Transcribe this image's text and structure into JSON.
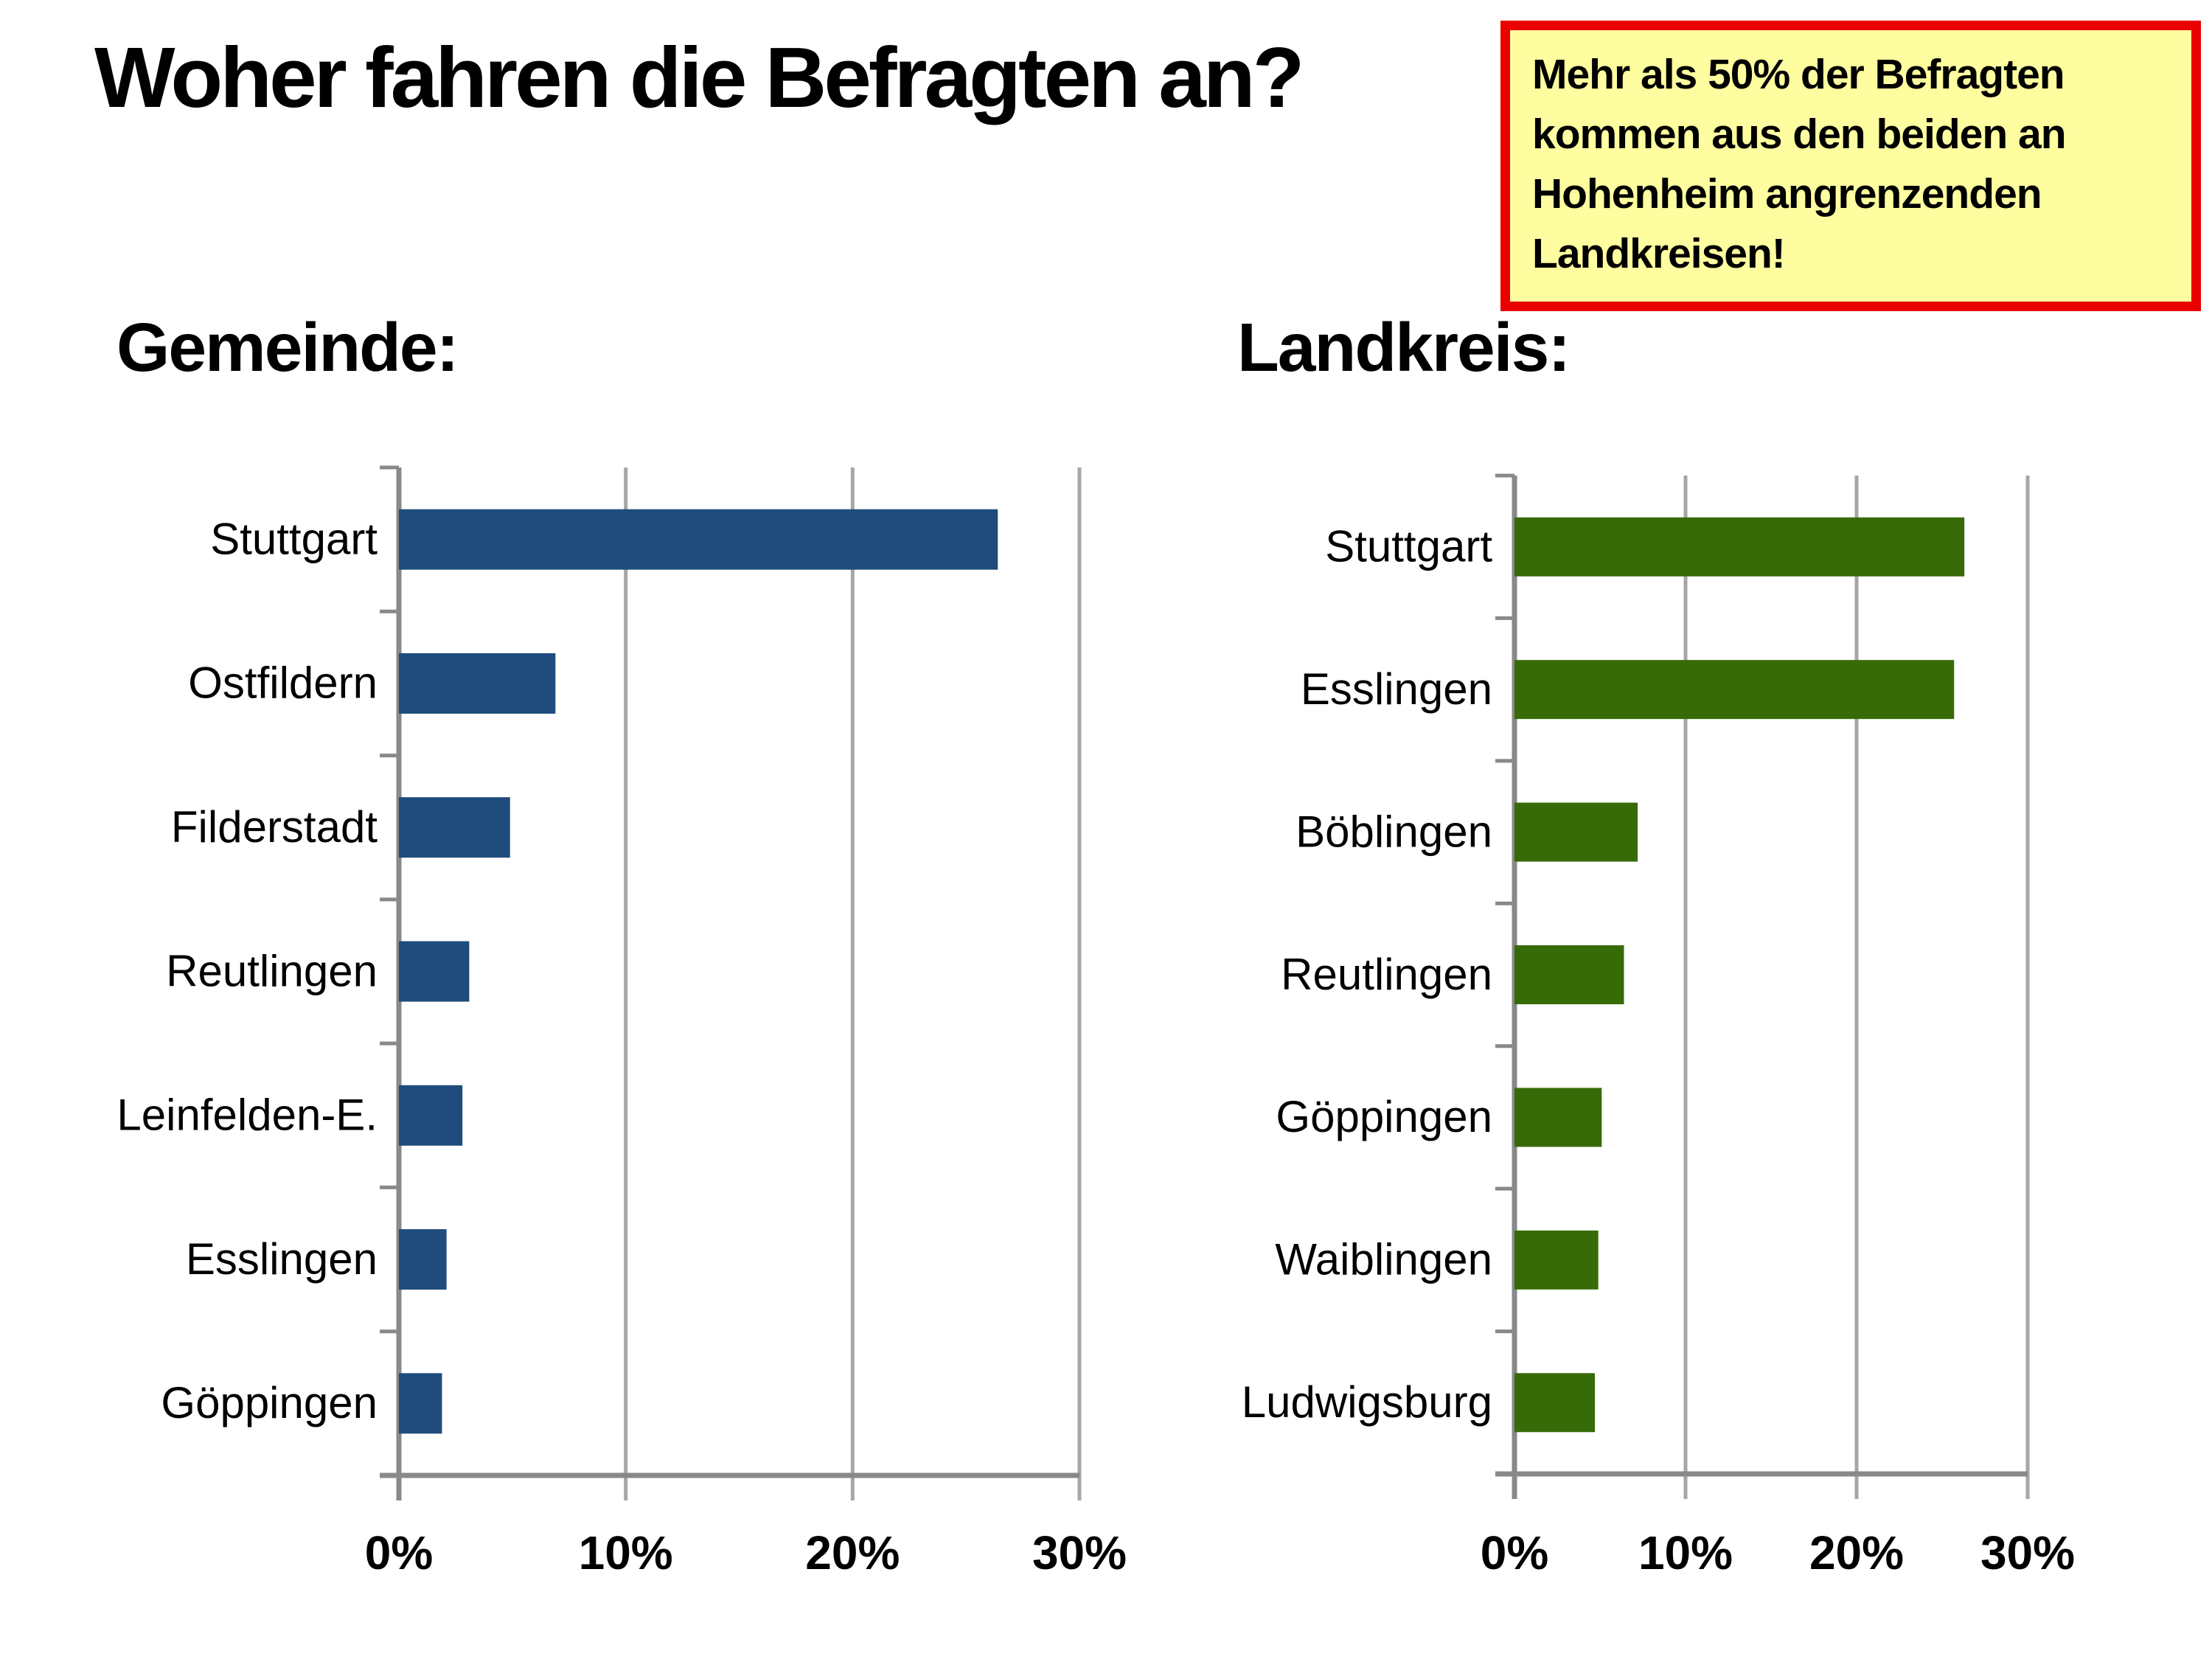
{
  "page": {
    "title": "Woher fahren die Befragten an?",
    "callout": {
      "lines": [
        "Mehr als 50% der Befragten",
        "kommen aus den beiden an",
        "Hohenheim angrenzenden",
        "Landkreisen!"
      ],
      "bg_color": "#fefd9f",
      "border_color": "#e90000",
      "text_color": "#000000"
    }
  },
  "colors": {
    "background": "#ffffff",
    "grid": "#a6a6a6",
    "axis": "#898989",
    "text": "#000000",
    "gemeinde_bar": "#1f4c7c",
    "landkreis_bar": "#376b07"
  },
  "chart_data": [
    {
      "type": "bar",
      "orientation": "horizontal",
      "section_label": "Gemeinde:",
      "categories": [
        "Stuttgart",
        "Ostfildern",
        "Filderstadt",
        "Reutlingen",
        "Leinfelden-E.",
        "Esslingen",
        "Göppingen"
      ],
      "values": [
        26.4,
        6.9,
        4.9,
        3.1,
        2.8,
        2.1,
        1.9
      ],
      "unit": "%",
      "bar_color": "#1f4c7c",
      "xlabel": "",
      "ylabel": "",
      "xlim": [
        0,
        30
      ],
      "x_tick_values": [
        0,
        10,
        20,
        30
      ],
      "x_ticks": [
        "0%",
        "10%",
        "20%",
        "30%"
      ],
      "grid": true,
      "legend": "none"
    },
    {
      "type": "bar",
      "orientation": "horizontal",
      "section_label": "Landkreis:",
      "categories": [
        "Stuttgart",
        "Esslingen",
        "Böblingen",
        "Reutlingen",
        "Göppingen",
        "Waiblingen",
        "Ludwigsburg"
      ],
      "values": [
        26.3,
        25.7,
        7.2,
        6.4,
        5.1,
        4.9,
        4.7
      ],
      "unit": "%",
      "bar_color": "#376b07",
      "xlabel": "",
      "ylabel": "",
      "xlim": [
        0,
        30
      ],
      "x_tick_values": [
        0,
        10,
        20,
        30
      ],
      "x_ticks": [
        "0%",
        "10%",
        "20%",
        "30%"
      ],
      "grid": true,
      "legend": "none"
    }
  ]
}
